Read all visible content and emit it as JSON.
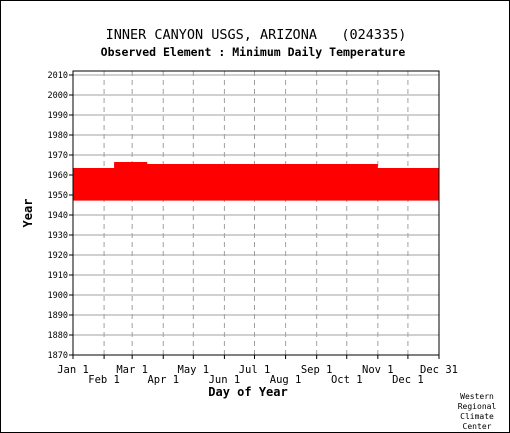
{
  "chart_data": {
    "type": "heatmap",
    "title": "INNER CANYON USGS, ARIZONA   (024335)",
    "subtitle": "Observed Element : Minimum Daily Temperature",
    "xlabel": "Day of Year",
    "ylabel": "Year",
    "credit": [
      "Western",
      "Regional",
      "Climate",
      "Center"
    ],
    "xlim": [
      1,
      366
    ],
    "ylim": [
      1870,
      2012
    ],
    "x_ticks": [
      {
        "label": "Jan 1",
        "day": 1,
        "row": 0
      },
      {
        "label": "Feb 1",
        "day": 32,
        "row": 1
      },
      {
        "label": "Mar 1",
        "day": 60,
        "row": 0
      },
      {
        "label": "Apr 1",
        "day": 91,
        "row": 1
      },
      {
        "label": "May 1",
        "day": 121,
        "row": 0
      },
      {
        "label": "Jun 1",
        "day": 152,
        "row": 1
      },
      {
        "label": "Jul 1",
        "day": 182,
        "row": 0
      },
      {
        "label": "Aug 1",
        "day": 213,
        "row": 1
      },
      {
        "label": "Sep 1",
        "day": 244,
        "row": 0
      },
      {
        "label": "Oct 1",
        "day": 274,
        "row": 1
      },
      {
        "label": "Nov 1",
        "day": 305,
        "row": 0
      },
      {
        "label": "Dec 1",
        "day": 335,
        "row": 1
      },
      {
        "label": "Dec 31",
        "day": 366,
        "row": 0
      }
    ],
    "y_ticks": [
      1870,
      1880,
      1890,
      1900,
      1910,
      1920,
      1930,
      1940,
      1950,
      1960,
      1970,
      1980,
      1990,
      2000,
      2010
    ],
    "grid": true,
    "data_color": "#ff0000",
    "series": [
      {
        "values": [
          {
            "year": 1948,
            "start": 1,
            "end": 366
          },
          {
            "year": 1949,
            "start": 1,
            "end": 366
          },
          {
            "year": 1950,
            "start": 1,
            "end": 366
          },
          {
            "year": 1951,
            "start": 1,
            "end": 366
          },
          {
            "year": 1952,
            "start": 1,
            "end": 366
          },
          {
            "year": 1953,
            "start": 1,
            "end": 366
          },
          {
            "year": 1954,
            "start": 1,
            "end": 366
          },
          {
            "year": 1955,
            "start": 1,
            "end": 366
          },
          {
            "year": 1956,
            "start": 1,
            "end": 366
          },
          {
            "year": 1957,
            "start": 1,
            "end": 366
          },
          {
            "year": 1958,
            "start": 1,
            "end": 366
          },
          {
            "year": 1959,
            "start": 1,
            "end": 366
          },
          {
            "year": 1960,
            "start": 1,
            "end": 366
          },
          {
            "year": 1961,
            "start": 1,
            "end": 366
          },
          {
            "year": 1962,
            "start": 1,
            "end": 366
          },
          {
            "year": 1963,
            "start": 1,
            "end": 366
          },
          {
            "year": 1964,
            "start": 42,
            "end": 305
          },
          {
            "year": 1965,
            "start": 42,
            "end": 305
          },
          {
            "year": 1966,
            "start": 42,
            "end": 75
          }
        ]
      }
    ]
  }
}
